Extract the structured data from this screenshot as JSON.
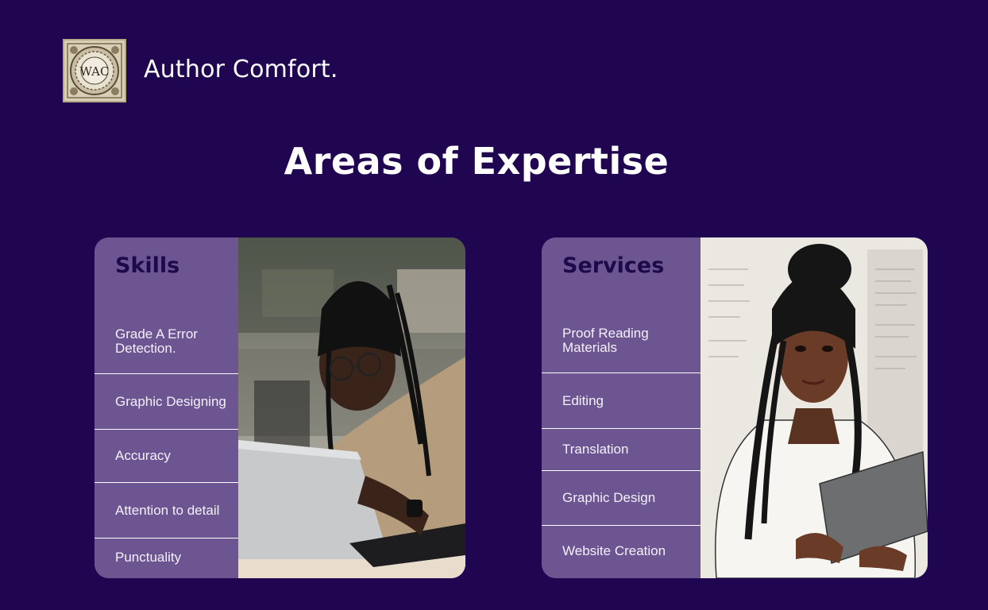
{
  "brand": {
    "name": "Author Comfort.",
    "logo_text": "WAC"
  },
  "page": {
    "title": "Areas of Expertise"
  },
  "colors": {
    "background": "#200651",
    "card": "#6d5591",
    "card_title": "#1c0a4a",
    "text": "#ffffff"
  },
  "skills": {
    "title": "Skills",
    "items": [
      {
        "line1": "Grade A Error",
        "line2": "Detection."
      },
      {
        "line1": "Graphic Designing",
        "line2": ""
      },
      {
        "line1": "Accuracy",
        "line2": ""
      },
      {
        "line1": "Attention to detail",
        "line2": ""
      },
      {
        "line1": "Punctuality",
        "line2": ""
      }
    ],
    "photo_icon": "woman-at-laptop-photo"
  },
  "services": {
    "title": "Services",
    "items": [
      {
        "line1": "Proof Reading",
        "line2": "Materials"
      },
      {
        "line1": "Editing",
        "line2": ""
      },
      {
        "line1": "Translation",
        "line2": ""
      },
      {
        "line1": "Graphic Design",
        "line2": ""
      },
      {
        "line1": "Website Creation",
        "line2": ""
      }
    ],
    "photo_icon": "woman-holding-folder-illustration"
  }
}
